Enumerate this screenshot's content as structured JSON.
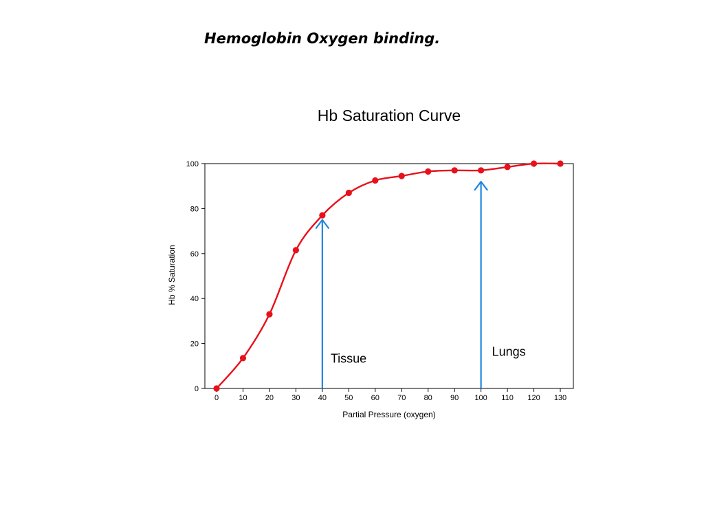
{
  "slide": {
    "title": "Hemoglobin Oxygen binding."
  },
  "chart_data": {
    "type": "line",
    "title": "Hb Saturation Curve",
    "xlabel": "Partial Pressure (oxygen)",
    "ylabel": "Hb % Saturation",
    "xlim": [
      0,
      130
    ],
    "ylim": [
      0,
      100
    ],
    "xticks": [
      0,
      10,
      20,
      30,
      40,
      50,
      60,
      70,
      80,
      90,
      100,
      110,
      120,
      130
    ],
    "yticks": [
      0,
      20,
      40,
      60,
      80,
      100
    ],
    "grid": false,
    "series": [
      {
        "color": "#e8101a",
        "x": [
          0,
          10,
          20,
          30,
          40,
          50,
          60,
          70,
          80,
          90,
          100,
          110,
          120,
          130
        ],
        "y": [
          0,
          13.5,
          33,
          61.5,
          77,
          87,
          92.5,
          94.5,
          96.5,
          97,
          97,
          98.5,
          100,
          100
        ]
      }
    ],
    "annotations": [
      {
        "label": "Tissue",
        "x": 40,
        "y": 75,
        "color": "#1f86e0"
      },
      {
        "label": "Lungs",
        "x": 100,
        "y": 92,
        "color": "#1f86e0"
      }
    ]
  }
}
